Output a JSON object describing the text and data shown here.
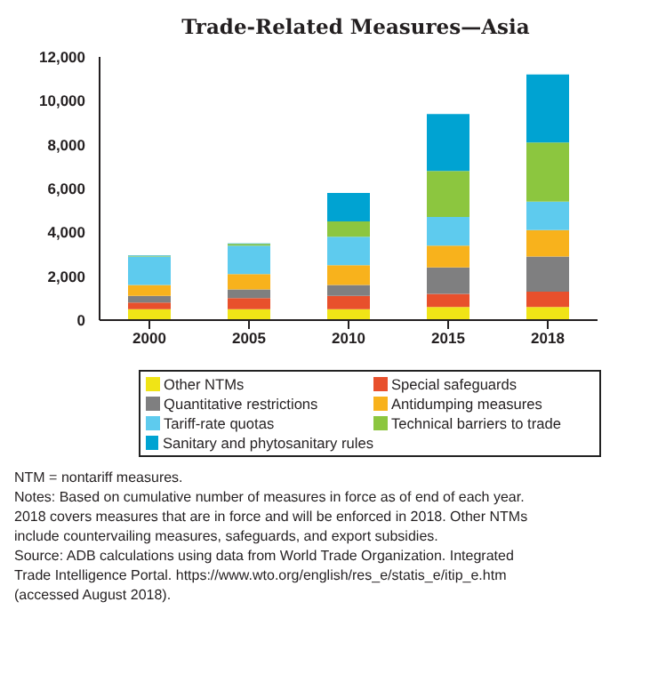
{
  "chart_data": {
    "type": "bar",
    "title": "Trade-Related Measures—Asia",
    "stacked": true,
    "legend": "bottom",
    "categories": [
      "2000",
      "2005",
      "2010",
      "2015",
      "2018"
    ],
    "series": [
      {
        "name": "Other NTMs",
        "color": "#f0e416",
        "values": [
          500,
          500,
          500,
          600,
          600
        ]
      },
      {
        "name": "Special safeguards",
        "color": "#e8502c",
        "values": [
          300,
          500,
          600,
          600,
          700
        ]
      },
      {
        "name": "Quantitative restrictions",
        "color": "#7f7f80",
        "values": [
          300,
          400,
          500,
          1200,
          1600
        ]
      },
      {
        "name": "Antidumping measures",
        "color": "#f8b21c",
        "values": [
          500,
          700,
          900,
          1000,
          1200
        ]
      },
      {
        "name": "Tariff-rate quotas",
        "color": "#5ecbee",
        "values": [
          1300,
          1300,
          1300,
          1300,
          1300
        ]
      },
      {
        "name": "Technical barriers to trade",
        "color": "#8cc63f",
        "values": [
          30,
          80,
          700,
          2100,
          2700
        ]
      },
      {
        "name": "Sanitary and phytosanitary rules",
        "color": "#00a3d2",
        "values": [
          20,
          20,
          1300,
          2600,
          3100
        ]
      }
    ],
    "ylim": [
      0,
      12000
    ],
    "yticks": [
      0,
      {
        "value": 2000,
        "label": "2,000"
      },
      {
        "value": 4000,
        "label": "4,000"
      },
      {
        "value": 6000,
        "label": "6,000"
      },
      {
        "value": 8000,
        "label": "8,000"
      },
      {
        "value": 10000,
        "label": "10,000"
      },
      {
        "value": 12000,
        "label": "12,000"
      }
    ],
    "annotations": [
      "NTM = nontariff measures.",
      "Notes: Based on cumulative number of measures in force as of end of each year. 2018 covers measures that are in force and will be enforced in 2018. Other NTMs include countervailing measures, safeguards, and export subsidies.",
      "Source: ADB calculations using data from World Trade Organization. Integrated Trade Intelligence Portal.  https://www.wto.org/english/res_e/statis_e/itip_e.htm (accessed August 2018)."
    ]
  }
}
